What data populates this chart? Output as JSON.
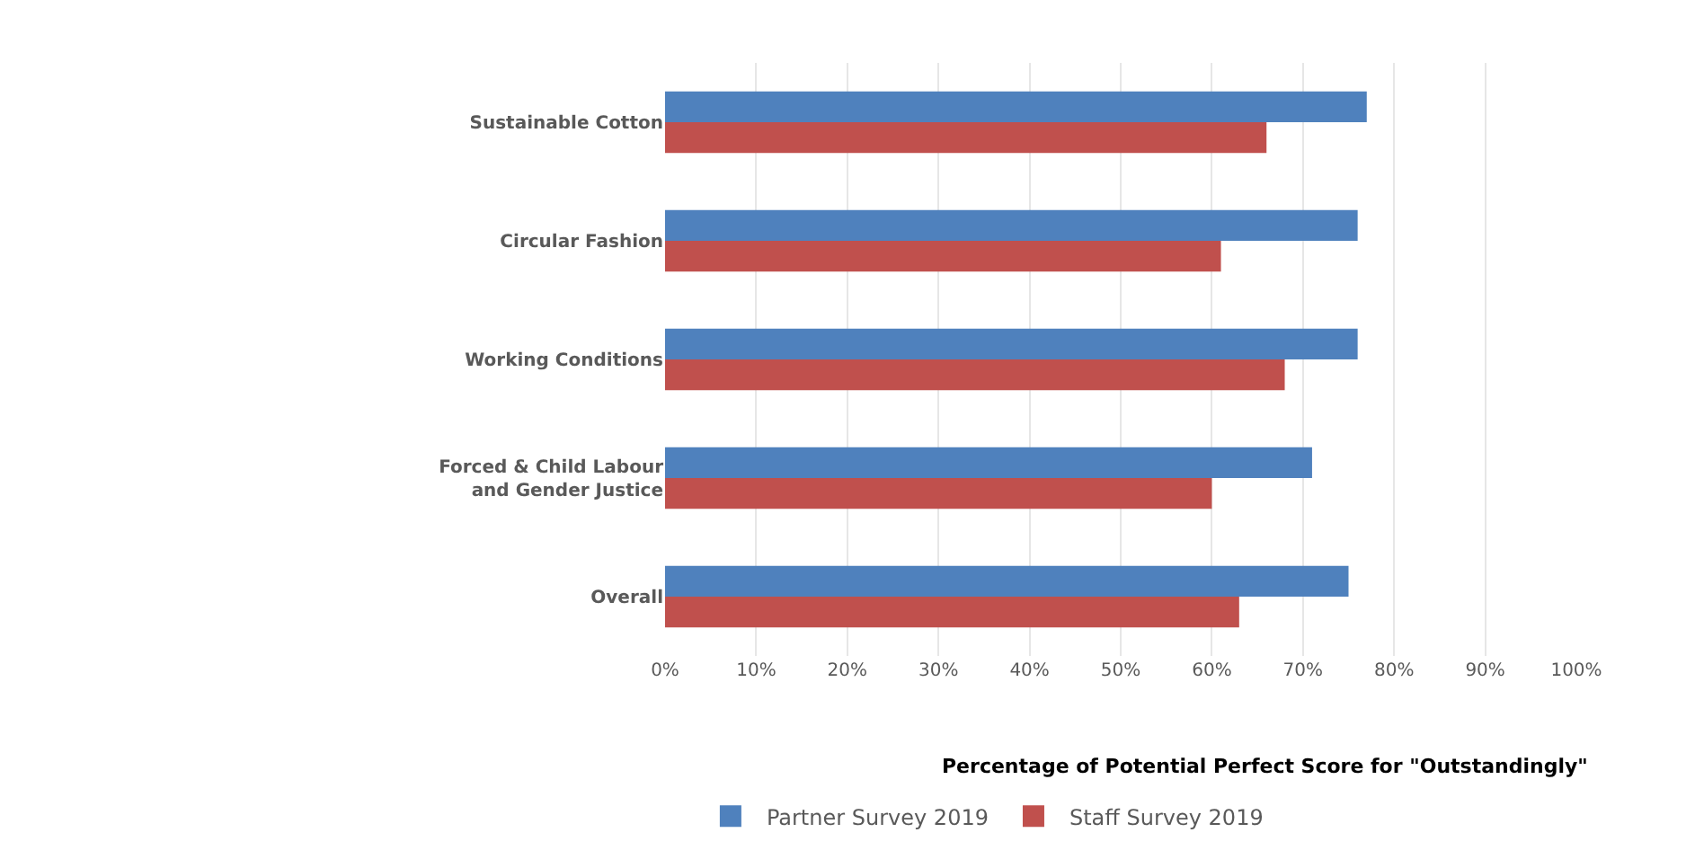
{
  "chart_data": {
    "type": "bar",
    "orientation": "horizontal",
    "xlabel": "Percentage of Potential Perfect Score for \"Outstandingly\"",
    "categories": [
      "Sustainable Cotton",
      "Circular Fashion",
      "Working Conditions",
      "Forced & Child Labour and Gender Justice",
      "Overall"
    ],
    "series": [
      {
        "name": "Partner Survey 2019",
        "color": "#4f81bd",
        "values": [
          77,
          76,
          76,
          71,
          75
        ]
      },
      {
        "name": "Staff Survey 2019",
        "color": "#c0504d",
        "values": [
          66,
          61,
          68,
          60,
          63
        ]
      }
    ],
    "xlim": [
      0,
      100
    ],
    "xticks": [
      {
        "value": 0,
        "label": "0%"
      },
      {
        "value": 10,
        "label": "10%"
      },
      {
        "value": 20,
        "label": "20%"
      },
      {
        "value": 30,
        "label": "30%"
      },
      {
        "value": 40,
        "label": "40%"
      },
      {
        "value": 50,
        "label": "50%"
      },
      {
        "value": 60,
        "label": "60%"
      },
      {
        "value": 70,
        "label": "70%"
      },
      {
        "value": 80,
        "label": "80%"
      },
      {
        "value": 90,
        "label": "90%"
      },
      {
        "value": 100,
        "label": "100%"
      }
    ],
    "grid": "x",
    "legend": "bottom"
  }
}
